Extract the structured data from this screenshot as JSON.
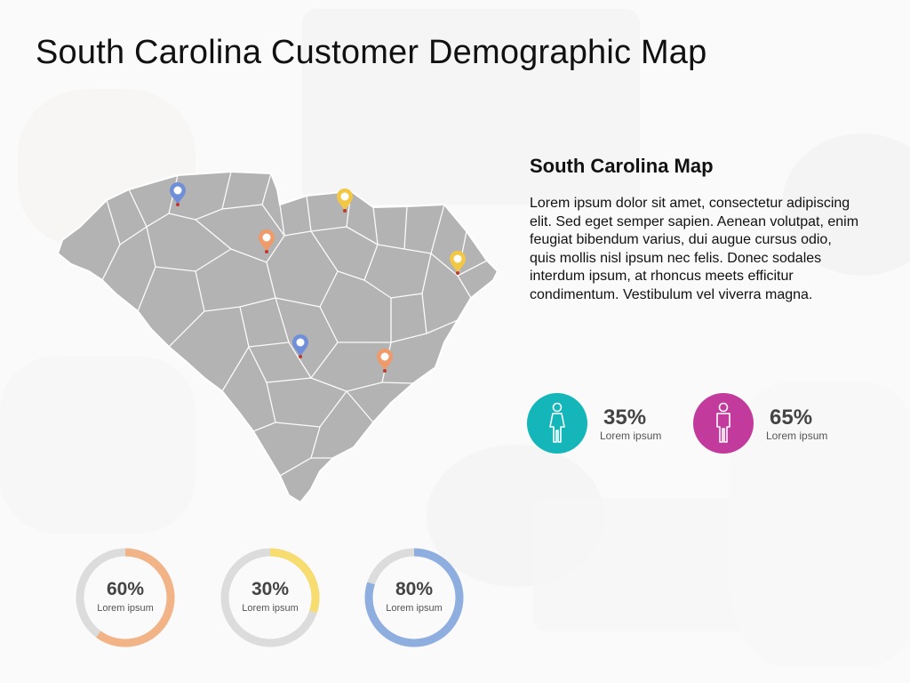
{
  "title": "South Carolina Customer Demographic Map",
  "info": {
    "heading": "South Carolina Map",
    "body": "Lorem ipsum dolor sit amet, consectetur adipiscing elit. Sed eget semper sapien. Aenean volutpat, enim feugiat bibendum varius, dui augue cursus odio, quis mollis nisl ipsum nec felis. Donec sodales interdum ipsum, at rhoncus meets efficitur condimentum. Vestibulum vel viverra magna."
  },
  "map": {
    "region": "South Carolina",
    "fill_color": "#b3b3b3",
    "border_color": "#ffffff",
    "pins": [
      {
        "name": "pin-blue-northwest",
        "color": "#6f8fd8"
      },
      {
        "name": "pin-yellow-north",
        "color": "#f2c744"
      },
      {
        "name": "pin-orange-upstate",
        "color": "#ef9a6a"
      },
      {
        "name": "pin-yellow-coast",
        "color": "#f2c744"
      },
      {
        "name": "pin-blue-midlands",
        "color": "#6f8fd8"
      },
      {
        "name": "pin-orange-lowcountry",
        "color": "#ef9a6a"
      }
    ]
  },
  "gender": [
    {
      "icon": "female-icon",
      "percent": "35%",
      "value": 0.35,
      "label": "Lorem ipsum",
      "color": "#14b6b9"
    },
    {
      "icon": "male-icon",
      "percent": "65%",
      "value": 0.65,
      "label": "Lorem ipsum",
      "color": "#c23a9c"
    }
  ],
  "donuts": [
    {
      "percent": "60%",
      "value": 0.6,
      "label": "Lorem ipsum",
      "color": "#f2b386"
    },
    {
      "percent": "30%",
      "value": 0.3,
      "label": "Lorem ipsum",
      "color": "#f7dc6f"
    },
    {
      "percent": "80%",
      "value": 0.8,
      "label": "Lorem ipsum",
      "color": "#8faee0"
    }
  ],
  "colors": {
    "track": "#dcdcdc",
    "text": "#111111"
  }
}
